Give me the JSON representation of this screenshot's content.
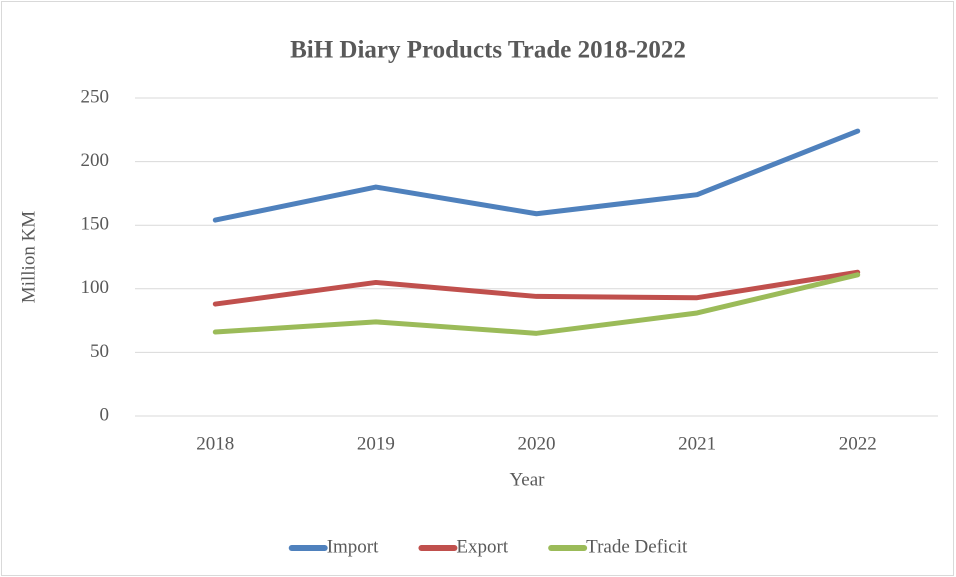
{
  "chart_data": {
    "type": "line",
    "title": "BiH Diary Products Trade 2018-2022",
    "x_label": "Year",
    "y_label": "Million KM",
    "categories": [
      "2018",
      "2019",
      "2020",
      "2021",
      "2022"
    ],
    "series": [
      {
        "name": "Import",
        "color": "#4f81bd",
        "values": [
          154,
          180,
          159,
          174,
          224
        ]
      },
      {
        "name": "Export",
        "color": "#c0504d",
        "values": [
          88,
          105,
          94,
          93,
          113
        ]
      },
      {
        "name": "Trade Deficit",
        "color": "#9bbb59",
        "values": [
          66,
          74,
          65,
          81,
          111
        ]
      }
    ],
    "ylim": [
      0,
      250
    ],
    "yticks": [
      0,
      50,
      100,
      150,
      200,
      250
    ],
    "grid": true,
    "legend": "bottom"
  }
}
